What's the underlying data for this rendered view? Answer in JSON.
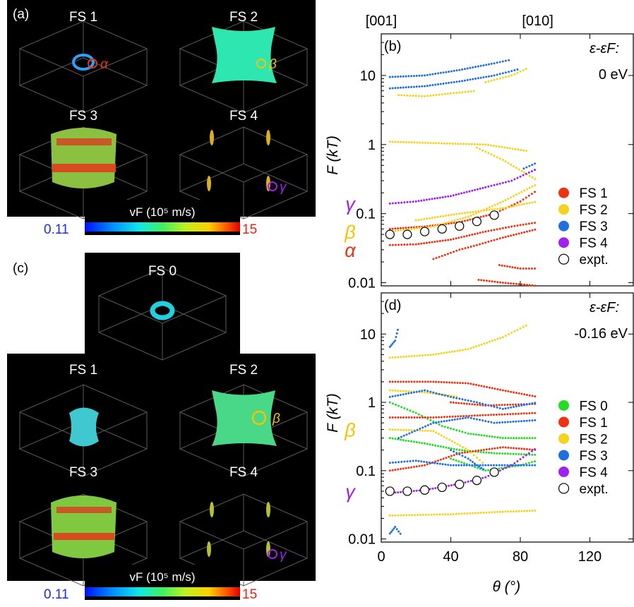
{
  "panels": {
    "a": {
      "label": "(a)",
      "fs_titles": [
        "FS 1",
        "FS 2",
        "FS 3",
        "FS 4"
      ],
      "orbit_labels": [
        "α",
        "β",
        "γ"
      ],
      "colorbar": {
        "title": "vF (10⁵ m/s)",
        "min_label": "0.11",
        "max_label": "15"
      }
    },
    "c": {
      "label": "(c)",
      "fs_titles": [
        "FS 0",
        "FS 1",
        "FS 2",
        "FS 3",
        "FS 4"
      ],
      "orbit_labels": [
        "β",
        "γ"
      ],
      "colorbar": {
        "title": "vF (10⁵ m/s)",
        "min_label": "0.11",
        "max_label": "15"
      }
    }
  },
  "colors": {
    "FS 0": "#22dd22",
    "FS 1": "#ee3311",
    "FS 2": "#f5d21c",
    "FS 3": "#1f6fe0",
    "FS 4": "#a020f0",
    "alpha": "#ee3311",
    "beta": "#f5c400",
    "gamma": "#a020f0",
    "fs_surface": "#2ee6b0",
    "fs0_surface": "#1fd1e0",
    "fs1_surface": "#2da0ff"
  },
  "chart_data": [
    {
      "panel": "(b)",
      "type": "scatter",
      "log_y": true,
      "xlim": [
        0,
        145
      ],
      "ylim": [
        0.009,
        40
      ],
      "xticks": [
        0,
        40,
        80,
        120
      ],
      "yticks": [
        0.01,
        0.1,
        1,
        10
      ],
      "ytick_labels": [
        "0.01",
        "0.1",
        "1",
        "10"
      ],
      "ylabel": "F (kT)",
      "top_axis_labels": [
        {
          "x": 0,
          "text": "[001]"
        },
        {
          "x": 90,
          "text": "[010]"
        }
      ],
      "energy_label": [
        "ε-εF:",
        "0 eV"
      ],
      "side_labels": [
        "γ",
        "β",
        "α"
      ],
      "legend": [
        "FS 1",
        "FS 2",
        "FS 3",
        "FS 4",
        "expt."
      ],
      "series": [
        {
          "name": "FS 1",
          "branches": [
            [
              [
                5,
                0.035
              ],
              [
                20,
                0.036
              ],
              [
                40,
                0.042
              ],
              [
                60,
                0.055
              ],
              [
                75,
                0.065
              ],
              [
                90,
                0.075
              ]
            ],
            [
              [
                5,
                0.06
              ],
              [
                25,
                0.065
              ],
              [
                45,
                0.075
              ],
              [
                65,
                0.1
              ],
              [
                80,
                0.15
              ],
              [
                90,
                0.22
              ]
            ],
            [
              [
                30,
                0.022
              ],
              [
                45,
                0.03
              ],
              [
                55,
                0.035
              ],
              [
                70,
                0.045
              ],
              [
                90,
                0.06
              ]
            ],
            [
              [
                68,
                0.018
              ],
              [
                80,
                0.016
              ],
              [
                90,
                0.016
              ]
            ],
            [
              [
                56,
                0.011
              ],
              [
                70,
                0.01
              ],
              [
                90,
                0.009
              ]
            ]
          ]
        },
        {
          "name": "FS 2",
          "branches": [
            [
              [
                5,
                1.1
              ],
              [
                30,
                1.05
              ],
              [
                60,
                1.0
              ],
              [
                85,
                0.8
              ]
            ],
            [
              [
                10,
                5.2
              ],
              [
                25,
                5.0
              ],
              [
                40,
                5.5
              ],
              [
                55,
                6.0
              ]
            ],
            [
              [
                60,
                8
              ],
              [
                75,
                10
              ],
              [
                85,
                13
              ]
            ],
            [
              [
                55,
                0.9
              ],
              [
                70,
                0.6
              ],
              [
                90,
                0.3
              ]
            ],
            [
              [
                5,
                0.055
              ],
              [
                30,
                0.065
              ],
              [
                50,
                0.09
              ],
              [
                70,
                0.15
              ],
              [
                90,
                0.27
              ]
            ],
            [
              [
                20,
                0.08
              ],
              [
                45,
                0.1
              ],
              [
                70,
                0.12
              ],
              [
                90,
                0.15
              ]
            ]
          ]
        },
        {
          "name": "FS 3",
          "branches": [
            [
              [
                5,
                6.5
              ],
              [
                25,
                7
              ],
              [
                45,
                8.2
              ],
              [
                65,
                10
              ],
              [
                80,
                12.5
              ]
            ],
            [
              [
                5,
                9.5
              ],
              [
                25,
                10
              ],
              [
                45,
                12
              ],
              [
                65,
                15
              ],
              [
                75,
                17
              ]
            ],
            [
              [
                82,
                0.45
              ],
              [
                90,
                0.55
              ]
            ]
          ]
        },
        {
          "name": "FS 4",
          "branches": [
            [
              [
                5,
                0.14
              ],
              [
                20,
                0.15
              ],
              [
                40,
                0.18
              ],
              [
                60,
                0.24
              ],
              [
                75,
                0.3
              ],
              [
                90,
                0.45
              ]
            ]
          ]
        },
        {
          "name": "expt.",
          "points": [
            [
              5,
              0.05
            ],
            [
              15,
              0.05
            ],
            [
              25,
              0.055
            ],
            [
              35,
              0.06
            ],
            [
              45,
              0.066
            ],
            [
              55,
              0.077
            ],
            [
              65,
              0.095
            ]
          ]
        }
      ]
    },
    {
      "panel": "(d)",
      "type": "scatter",
      "log_y": true,
      "xlim": [
        0,
        145
      ],
      "ylim": [
        0.009,
        40
      ],
      "xticks": [
        0,
        40,
        80,
        120
      ],
      "xtick_labels": [
        "0",
        "40",
        "80",
        "120"
      ],
      "yticks": [
        0.01,
        0.1,
        1,
        10
      ],
      "ytick_labels": [
        "0.01",
        "0.1",
        "1",
        "10"
      ],
      "xlabel": "θ (°)",
      "ylabel": "F (kT)",
      "energy_label": [
        "ε-εF:",
        "-0.16 eV"
      ],
      "side_labels": [
        "β",
        "γ"
      ],
      "legend": [
        "FS 0",
        "FS 1",
        "FS 2",
        "FS 3",
        "FS 4",
        "expt."
      ],
      "series": [
        {
          "name": "FS 0",
          "branches": [
            [
              [
                5,
                1.0
              ],
              [
                20,
                0.7
              ],
              [
                35,
                0.45
              ],
              [
                50,
                0.35
              ],
              [
                70,
                0.3
              ],
              [
                90,
                0.3
              ]
            ],
            [
              [
                5,
                0.3
              ],
              [
                25,
                0.25
              ],
              [
                45,
                0.2
              ],
              [
                65,
                0.18
              ],
              [
                90,
                0.17
              ]
            ],
            [
              [
                40,
                0.15
              ],
              [
                60,
                0.1
              ],
              [
                80,
                0.12
              ],
              [
                90,
                0.14
              ]
            ]
          ]
        },
        {
          "name": "FS 1",
          "branches": [
            [
              [
                5,
                2.0
              ],
              [
                30,
                2.0
              ],
              [
                50,
                1.9
              ],
              [
                70,
                1.5
              ],
              [
                90,
                1.2
              ]
            ],
            [
              [
                5,
                0.6
              ],
              [
                30,
                0.6
              ],
              [
                60,
                0.65
              ],
              [
                90,
                0.7
              ]
            ],
            [
              [
                5,
                0.1
              ],
              [
                25,
                0.12
              ],
              [
                45,
                0.18
              ],
              [
                70,
                0.22
              ],
              [
                90,
                0.2
              ]
            ],
            [
              [
                40,
                1.0
              ],
              [
                60,
                0.9
              ],
              [
                90,
                0.95
              ]
            ]
          ]
        },
        {
          "name": "FS 2",
          "branches": [
            [
              [
                5,
                4.5
              ],
              [
                30,
                5
              ],
              [
                50,
                6
              ],
              [
                70,
                9
              ],
              [
                85,
                14
              ]
            ],
            [
              [
                5,
                0.022
              ],
              [
                40,
                0.023
              ],
              [
                70,
                0.025
              ],
              [
                90,
                0.026
              ]
            ],
            [
              [
                5,
                0.4
              ],
              [
                30,
                0.38
              ],
              [
                50,
                0.2
              ],
              [
                60,
                0.12
              ]
            ],
            [
              [
                5,
                1.5
              ],
              [
                25,
                1.4
              ],
              [
                45,
                1.2
              ]
            ]
          ]
        },
        {
          "name": "FS 3",
          "branches": [
            [
              [
                5,
                6.5
              ],
              [
                8,
                8
              ],
              [
                10,
                13
              ]
            ],
            [
              [
                5,
                1.2
              ],
              [
                25,
                1.5
              ],
              [
                40,
                1.2
              ],
              [
                55,
                1.0
              ],
              [
                70,
                0.8
              ],
              [
                90,
                1.0
              ]
            ],
            [
              [
                10,
                0.3
              ],
              [
                30,
                0.5
              ],
              [
                50,
                0.6
              ],
              [
                65,
                0.5
              ],
              [
                90,
                0.55
              ]
            ],
            [
              [
                40,
                0.2
              ],
              [
                50,
                0.15
              ],
              [
                55,
                0.12
              ],
              [
                60,
                0.1
              ]
            ],
            [
              [
                5,
                0.012
              ],
              [
                8,
                0.015
              ],
              [
                12,
                0.011
              ]
            ],
            [
              [
                5,
                0.13
              ],
              [
                20,
                0.14
              ],
              [
                40,
                0.12
              ],
              [
                60,
                0.12
              ],
              [
                90,
                0.12
              ]
            ]
          ]
        },
        {
          "name": "FS 4",
          "branches": [
            [
              [
                5,
                0.047
              ],
              [
                25,
                0.052
              ],
              [
                45,
                0.064
              ],
              [
                60,
                0.08
              ],
              [
                75,
                0.12
              ],
              [
                90,
                0.22
              ]
            ]
          ]
        },
        {
          "name": "expt.",
          "points": [
            [
              5,
              0.05
            ],
            [
              15,
              0.05
            ],
            [
              25,
              0.052
            ],
            [
              35,
              0.057
            ],
            [
              45,
              0.063
            ],
            [
              55,
              0.072
            ],
            [
              65,
              0.095
            ]
          ]
        }
      ]
    }
  ]
}
